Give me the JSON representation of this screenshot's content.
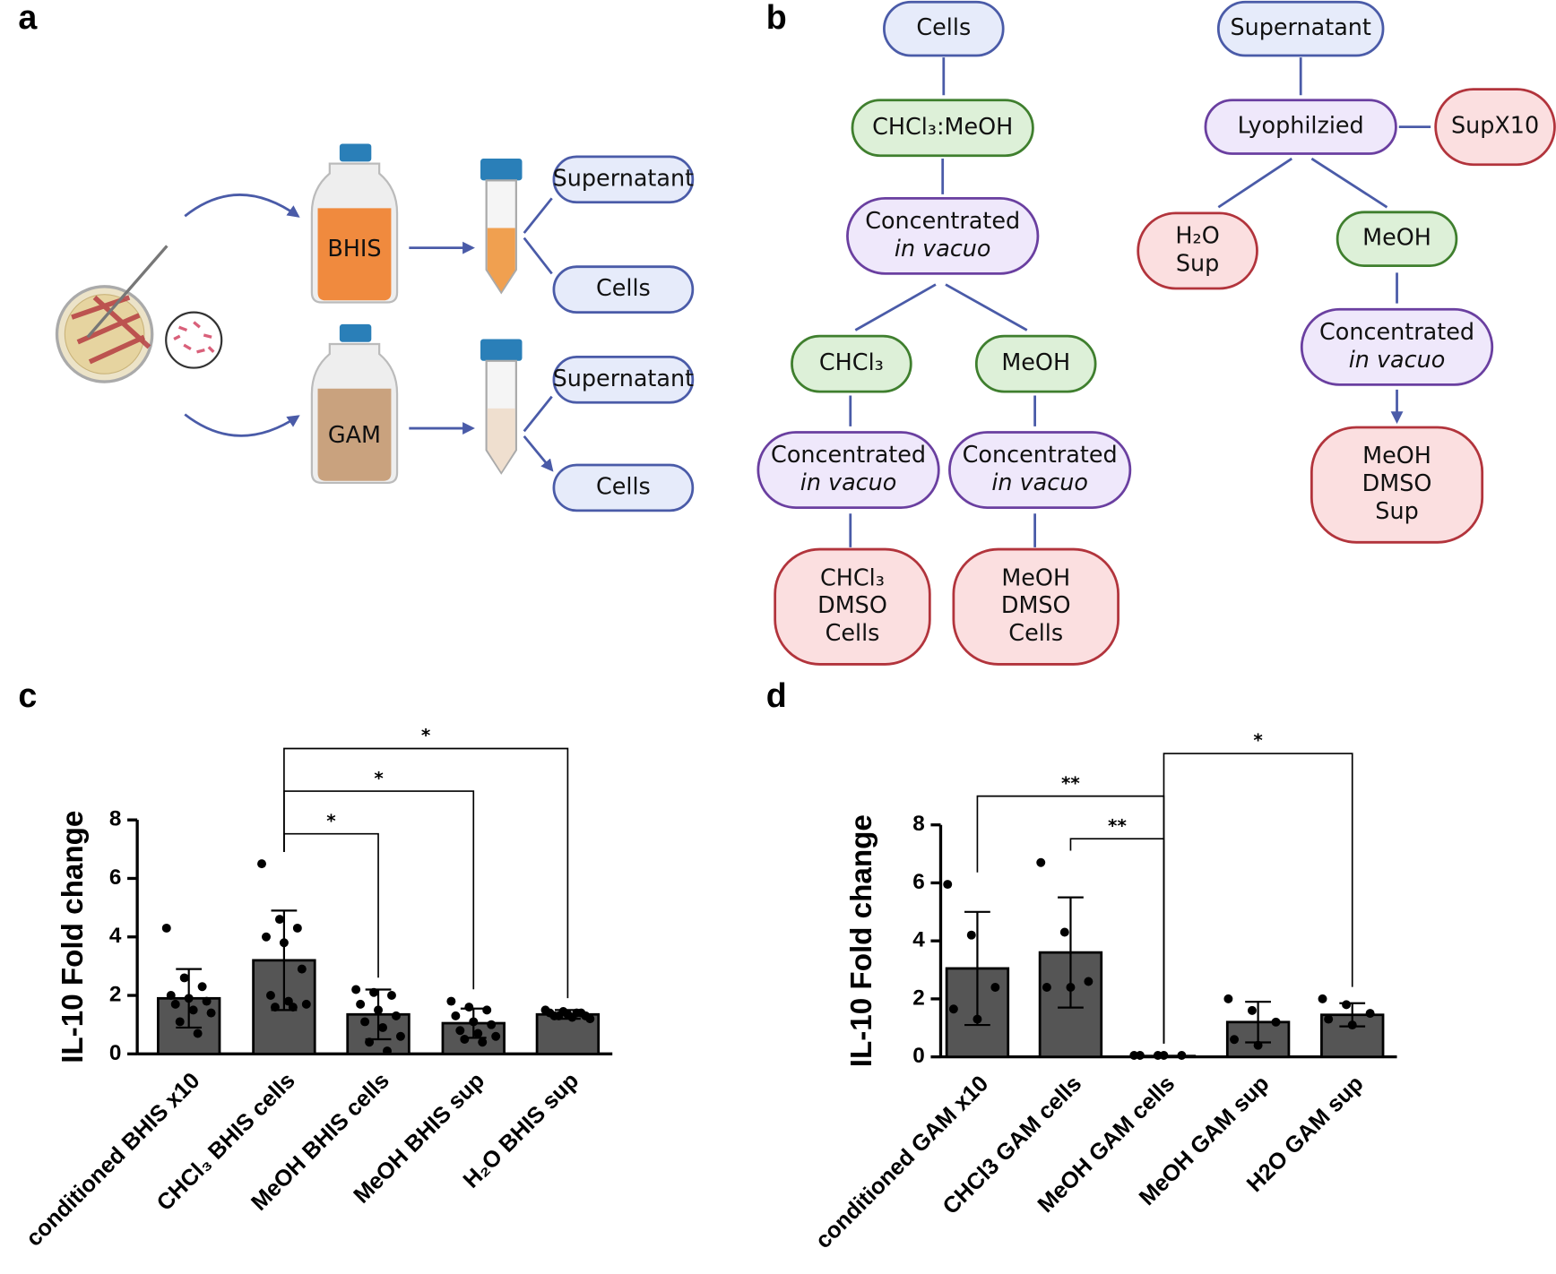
{
  "panel_labels": [
    "a",
    "b",
    "c",
    "d"
  ],
  "panel_a": {
    "bottles": [
      "BHIS",
      "GAM"
    ],
    "boxes": [
      "Supernatant",
      "Cells",
      "Supernatant",
      "Cells"
    ]
  },
  "panel_b": {
    "nodes": [
      {
        "lines": [
          "Cells"
        ],
        "fill": "#e6ebfa",
        "stroke": "#4a5ba8"
      },
      {
        "lines": [
          "CHCl₃:MeOH"
        ],
        "fill": "#ddf0d8",
        "stroke": "#3f7f2e"
      },
      {
        "lines": [
          "Concentrated",
          "in vacuo"
        ],
        "italic_lines": [
          1
        ],
        "fill": "#efe8fb",
        "stroke": "#6a3fa0"
      },
      {
        "lines": [
          "CHCl₃"
        ],
        "fill": "#ddf0d8",
        "stroke": "#3f7f2e"
      },
      {
        "lines": [
          "MeOH"
        ],
        "fill": "#ddf0d8",
        "stroke": "#3f7f2e"
      },
      {
        "lines": [
          "Concentrated",
          "in vacuo"
        ],
        "italic_lines": [
          1
        ],
        "fill": "#efe8fb",
        "stroke": "#6a3fa0"
      },
      {
        "lines": [
          "Concentrated",
          "in vacuo"
        ],
        "italic_lines": [
          1
        ],
        "fill": "#efe8fb",
        "stroke": "#6a3fa0"
      },
      {
        "lines": [
          "CHCl₃",
          "DMSO",
          "Cells"
        ],
        "fill": "#fbdfe0",
        "stroke": "#b2343c"
      },
      {
        "lines": [
          "MeOH",
          "DMSO",
          "Cells"
        ],
        "fill": "#fbdfe0",
        "stroke": "#b2343c"
      },
      {
        "lines": [
          "Supernatant"
        ],
        "fill": "#e6ebfa",
        "stroke": "#4a5ba8"
      },
      {
        "lines": [
          "Lyophilzied"
        ],
        "fill": "#efe8fb",
        "stroke": "#6a3fa0"
      },
      {
        "lines": [
          "SupX10"
        ],
        "fill": "#fbdfe0",
        "stroke": "#b2343c"
      },
      {
        "lines": [
          "H₂O",
          "Sup"
        ],
        "fill": "#fbdfe0",
        "stroke": "#b2343c"
      },
      {
        "lines": [
          "MeOH"
        ],
        "fill": "#ddf0d8",
        "stroke": "#3f7f2e"
      },
      {
        "lines": [
          "Concentrated",
          "in vacuo"
        ],
        "italic_lines": [
          1
        ],
        "fill": "#efe8fb",
        "stroke": "#6a3fa0"
      },
      {
        "lines": [
          "MeOH",
          "DMSO",
          "Sup"
        ],
        "fill": "#fbdfe0",
        "stroke": "#b2343c"
      }
    ]
  },
  "chart_data": [
    {
      "type": "bar",
      "y_label": "IL-10 Fold change",
      "categories": [
        "conditioned BHIS x10",
        "CHCl₃ BHIS cells",
        "MeOH BHIS cells",
        "MeOH BHIS sup",
        "H₂O BHIS sup"
      ],
      "values": [
        1.9,
        3.2,
        1.35,
        1.05,
        1.35
      ],
      "errors": [
        1.0,
        1.7,
        0.85,
        0.5,
        0.15
      ],
      "points": [
        [
          4.3,
          2.6,
          2.3,
          2.0,
          1.9,
          1.8,
          1.7,
          1.5,
          1.4,
          1.1,
          0.7
        ],
        [
          6.5,
          4.6,
          4.3,
          4.0,
          3.8,
          2.9,
          2.0,
          1.8,
          1.7,
          1.6,
          1.6
        ],
        [
          2.2,
          2.1,
          2.0,
          1.7,
          1.5,
          1.3,
          1.1,
          0.9,
          0.6,
          0.4,
          0.1
        ],
        [
          1.8,
          1.6,
          1.5,
          1.3,
          1.1,
          1.0,
          0.8,
          0.7,
          0.6,
          0.5,
          0.4
        ],
        [
          1.5,
          1.45,
          1.4,
          1.4,
          1.35,
          1.3,
          1.3,
          1.25,
          1.2,
          1.3,
          1.4
        ]
      ],
      "ylim": [
        0,
        8
      ],
      "yticks": [
        0,
        2,
        4,
        6,
        8
      ],
      "color": "#555555",
      "significance": [
        {
          "from": 1,
          "to": 2,
          "label": "*"
        },
        {
          "from": 1,
          "to": 3,
          "label": "*"
        },
        {
          "from": 1,
          "to": 4,
          "label": "*"
        }
      ]
    },
    {
      "type": "bar",
      "y_label": "IL-10 Fold change",
      "categories": [
        "conditioned GAM x10",
        "CHCl3 GAM cells",
        "MeOH GAM cells",
        "MeOH GAM sup",
        "H2O GAM sup"
      ],
      "values": [
        3.05,
        3.6,
        0.03,
        1.2,
        1.45
      ],
      "errors": [
        1.95,
        1.9,
        0.0,
        0.7,
        0.4
      ],
      "points": [
        [
          5.95,
          4.2,
          2.4,
          1.65,
          1.3
        ],
        [
          6.7,
          4.3,
          2.6,
          2.4,
          2.4
        ],
        [
          0.05,
          0.05,
          0.05,
          0.05,
          0.05
        ],
        [
          2.0,
          1.6,
          1.2,
          0.6,
          0.4
        ],
        [
          2.0,
          1.8,
          1.5,
          1.3,
          1.1
        ]
      ],
      "ylim": [
        0,
        8
      ],
      "yticks": [
        0,
        2,
        4,
        6,
        8
      ],
      "color": "#555555",
      "significance": [
        {
          "from": 1,
          "to": 2,
          "label": "**"
        },
        {
          "from": 0,
          "to": 2,
          "label": "**"
        },
        {
          "from": 2,
          "to": 4,
          "label": "*"
        }
      ]
    }
  ]
}
